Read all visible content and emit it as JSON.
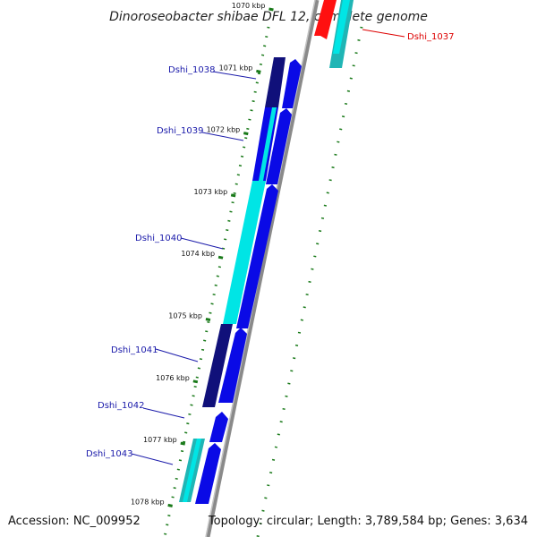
{
  "title": "Dinoroseobacter shibae DFL 12, complete genome",
  "footer": {
    "accession": "Accession: NC_009952",
    "summary": "Topology: circular; Length: 3,789,584 bp; Genes: 3,634"
  },
  "colors": {
    "backbone": "#8a8a8a",
    "tick": "#1a7a1a",
    "label_blue": "#1a1aaa",
    "label_red": "#dd0000",
    "gene_blue": "#0a0ae6",
    "gene_navy": "#10107a",
    "gene_cyan": "#00e5e5",
    "gene_teal": "#20b5b5",
    "gene_red": "#ff1010"
  },
  "ticks": [
    {
      "label": "1070 kbp"
    },
    {
      "label": "1071 kbp"
    },
    {
      "label": "1072 kbp"
    },
    {
      "label": "1073 kbp"
    },
    {
      "label": "1074 kbp"
    },
    {
      "label": "1075 kbp"
    },
    {
      "label": "1076 kbp"
    },
    {
      "label": "1077 kbp"
    },
    {
      "label": "1078 kbp"
    }
  ],
  "genes": [
    {
      "name": "Dshi_1037",
      "strand": "reverse"
    },
    {
      "name": "Dshi_1038",
      "strand": "forward"
    },
    {
      "name": "Dshi_1039",
      "strand": "forward"
    },
    {
      "name": "Dshi_1040",
      "strand": "forward"
    },
    {
      "name": "Dshi_1041",
      "strand": "forward"
    },
    {
      "name": "Dshi_1042",
      "strand": "forward"
    },
    {
      "name": "Dshi_1043",
      "strand": "forward"
    }
  ]
}
